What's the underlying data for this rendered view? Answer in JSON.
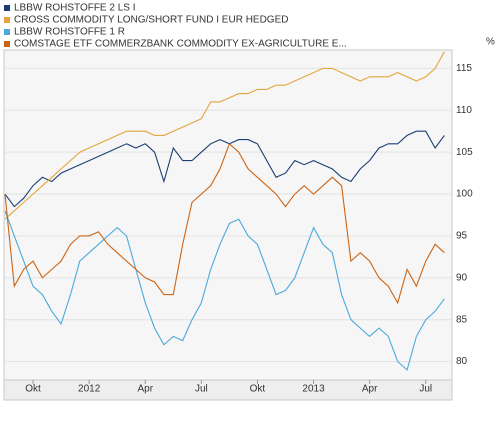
{
  "chart_data": {
    "type": "line",
    "y_unit": "%",
    "categories": [
      null,
      null,
      null,
      "Okt",
      null,
      null,
      null,
      null,
      null,
      "2012",
      null,
      null,
      null,
      null,
      null,
      "Apr",
      null,
      null,
      null,
      null,
      null,
      "Jul",
      null,
      null,
      null,
      null,
      null,
      "Okt",
      null,
      null,
      null,
      null,
      null,
      "2013",
      null,
      null,
      null,
      null,
      null,
      "Apr",
      null,
      null,
      null,
      null,
      null,
      "Jul",
      null,
      null
    ],
    "series": [
      {
        "name": "LBBW ROHSTOFFE 2 LS I",
        "color": "#1b3f73",
        "values": [
          100,
          98.5,
          99.5,
          101,
          102,
          101.5,
          102.5,
          103,
          103.5,
          104,
          104.5,
          105,
          105.5,
          106,
          105.5,
          106,
          105,
          101.5,
          105.5,
          104,
          104,
          105,
          106,
          106.5,
          106,
          106.5,
          106.5,
          106,
          104,
          102,
          102.5,
          104,
          103.5,
          104,
          103.5,
          103,
          102,
          101.5,
          103,
          104,
          105.5,
          106,
          106,
          107,
          107.5,
          107.5,
          105.5,
          107
        ]
      },
      {
        "name": "CROSS COMMODITY LONG/SHORT FUND I EUR HEDGED",
        "color": "#e6a43c",
        "values": [
          97,
          98,
          99,
          100,
          101,
          102,
          103,
          104,
          105,
          105.5,
          106,
          106.5,
          107,
          107.5,
          107.5,
          107.5,
          107,
          107,
          107.5,
          108,
          108.5,
          109,
          111,
          111,
          111.5,
          112,
          112,
          112.5,
          112.5,
          113,
          113,
          113.5,
          114,
          114.5,
          115,
          115,
          114.5,
          114,
          113.5,
          114,
          114,
          114,
          114.5,
          114,
          113.5,
          114,
          115,
          117
        ]
      },
      {
        "name": "LBBW ROHSTOFFE 1 R",
        "color": "#4aa9dc",
        "values": [
          98,
          95,
          92,
          89,
          88,
          86,
          84.5,
          88,
          92,
          93,
          94,
          95,
          96,
          95,
          91,
          87,
          84,
          82,
          83,
          82.5,
          85,
          87,
          91,
          94,
          96.5,
          97,
          95,
          94,
          91,
          88,
          88.5,
          90,
          93,
          96,
          94,
          93,
          88,
          85,
          84,
          83,
          84,
          83,
          80,
          79,
          83,
          85,
          86,
          87.5
        ]
      },
      {
        "name": "COMSTAGE ETF COMMERZBANK COMMODITY EX-AGRICULTURE E...",
        "color": "#cc6414",
        "values": [
          100,
          89,
          91,
          92,
          90,
          91,
          92,
          94,
          95,
          95,
          95.5,
          94,
          93,
          92,
          91,
          90,
          89.5,
          88,
          88,
          94,
          99,
          100,
          101,
          103,
          106,
          105,
          103,
          102,
          101,
          100,
          98.5,
          100,
          101,
          100,
          101,
          102,
          101,
          92,
          93,
          92,
          90,
          89,
          87,
          91,
          89,
          92,
          94,
          93
        ]
      }
    ],
    "ylim": [
      77.8,
      117.2
    ],
    "yticks": [
      80,
      85,
      90,
      95,
      100,
      105,
      110,
      115
    ],
    "grid": true
  }
}
